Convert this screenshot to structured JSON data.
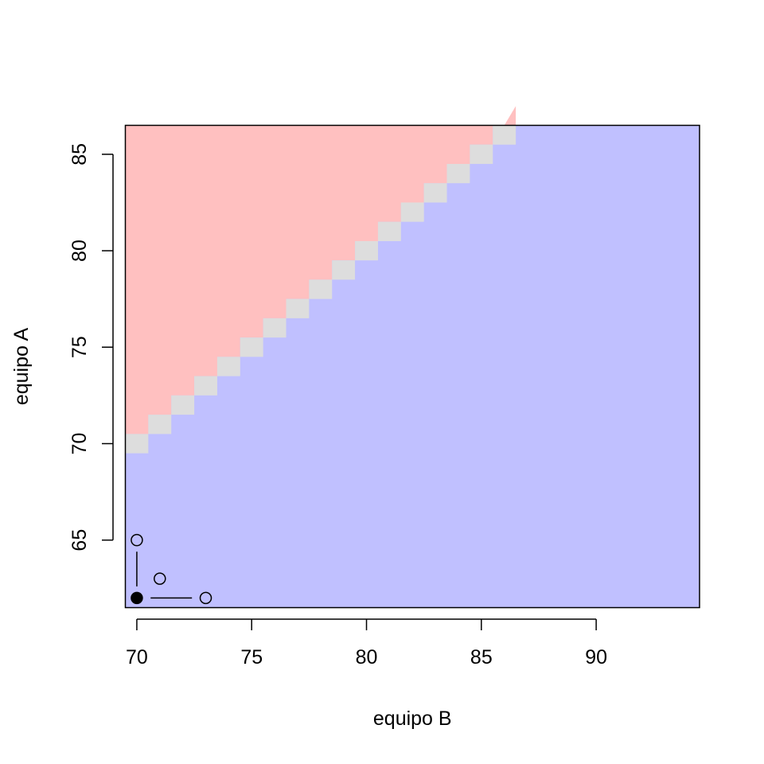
{
  "chart_data": {
    "type": "heatmap",
    "title": "",
    "xlabel": "equipo B",
    "ylabel": "equipo A",
    "xlim": [
      69.5,
      94.5
    ],
    "ylim": [
      61.5,
      86.5
    ],
    "x_ticks": [
      70,
      75,
      80,
      85,
      90
    ],
    "y_ticks": [
      65,
      70,
      75,
      80,
      85
    ],
    "x_tick_labels": [
      "70",
      "75",
      "80",
      "85",
      "90"
    ],
    "y_tick_labels": [
      "65",
      "70",
      "75",
      "80",
      "85"
    ],
    "grid": false,
    "legend": "none",
    "regions": [
      {
        "label": "A > B",
        "condition": "y > x",
        "color": "#ffc0c0"
      },
      {
        "label": "A = B",
        "condition": "y == x",
        "color": "#dddddd"
      },
      {
        "label": "A < B",
        "condition": "y < x",
        "color": "#c0c0ff"
      }
    ],
    "cell_size": 1,
    "points": [
      {
        "x": 70,
        "y": 62,
        "filled": true
      },
      {
        "x": 70,
        "y": 65,
        "filled": false
      },
      {
        "x": 71,
        "y": 63,
        "filled": false
      },
      {
        "x": 73,
        "y": 62,
        "filled": false
      }
    ],
    "segments": [
      {
        "x1": 70,
        "y1": 62.6,
        "x2": 70,
        "y2": 64.4
      },
      {
        "x1": 70.6,
        "y1": 62,
        "x2": 72.4,
        "y2": 62
      }
    ]
  }
}
